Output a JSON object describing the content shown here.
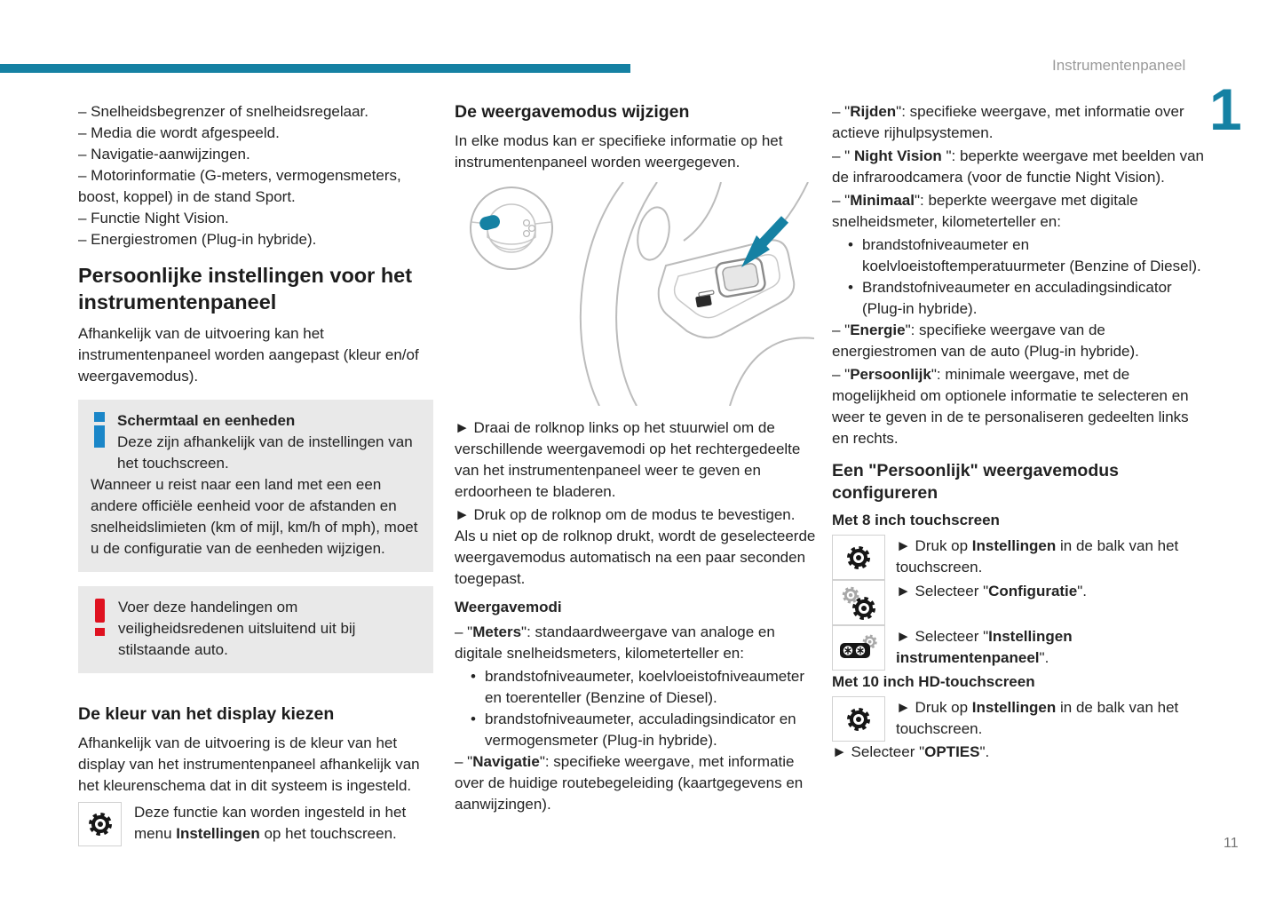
{
  "header": {
    "title": "Instrumentenpaneel",
    "chapter_number": "1",
    "page_number": "11"
  },
  "colors": {
    "teal": "#1581a3",
    "info_blue": "#1a86c8",
    "warning_red": "#df1220",
    "box_gray": "#e9e9e9"
  },
  "col1": {
    "intro_items": [
      "–  Snelheidsbegrenzer of snelheidsregelaar.",
      "–  Media die wordt afgespeeld.",
      "–  Navigatie-aanwijzingen.",
      "–  Motorinformatie (G-meters, vermogensmeters, boost, koppel) in de stand Sport.",
      "–  Functie Night Vision.",
      "–  Energiestromen (Plug-in hybride)."
    ],
    "heading": "Persoonlijke instellingen voor het instrumentenpaneel",
    "intro_paragraph": "Afhankelijk van de uitvoering kan het instrumentenpaneel worden aangepast (kleur en/of weergavemodus).",
    "info_box": {
      "title": "Schermtaal en eenheden",
      "para1": "Deze zijn afhankelijk van de instellingen van het touchscreen.",
      "para2": "Wanneer u reist naar een land met een een andere officiële eenheid voor de afstanden en snelheidslimieten (km of mijl, km/h of mph), moet u de configuratie van de eenheden wijzigen."
    },
    "warning_box": {
      "text": "Voer deze handelingen om veiligheidsredenen uitsluitend uit bij stilstaande auto."
    },
    "color_heading": "De kleur van het display kiezen",
    "color_paragraph": "Afhankelijk van de uitvoering is de kleur van het display van het instrumentenpaneel afhankelijk van het kleurenschema dat in dit systeem is ingesteld.",
    "gear_note": [
      {
        "t": "Deze functie kan worden ingesteld in het menu "
      },
      {
        "t": "Instellingen",
        "b": true
      },
      {
        "t": " op het touchscreen."
      }
    ]
  },
  "col2": {
    "heading": "De weergavemodus wijzigen",
    "intro_paragraph": "In elke modus kan er specifieke informatie op het instrumentenpaneel worden weergegeven.",
    "step1": "►  Draai de rolknop links op het stuurwiel om de verschillende weergavemodi op het rechtergedeelte van het instrumentenpaneel weer te geven en erdoorheen te bladeren.",
    "step2": "►  Druk op de rolknop om de modus te bevestigen. Als u niet op de rolknop drukt, wordt de geselecteerde weergavemodus automatisch na een paar seconden toegepast.",
    "modes_heading": "Weergavemodi",
    "mode_meters": [
      {
        "t": "–  \""
      },
      {
        "t": "Meters",
        "b": true
      },
      {
        "t": "\": standaardweergave van analoge en digitale snelheidsmeters, kilometerteller en:"
      }
    ],
    "meters_bullets": [
      "brandstofniveaumeter, koelvloeistofniveaumeter en toerenteller (Benzine of Diesel).",
      "brandstofniveaumeter, acculadingsindicator en vermogensmeter (Plug-in hybride)."
    ],
    "mode_navigatie": [
      {
        "t": "–  \""
      },
      {
        "t": "Navigatie",
        "b": true
      },
      {
        "t": "\": specifieke weergave, met informatie over de huidige routebegeleiding (kaartgegevens en aanwijzingen)."
      }
    ]
  },
  "col3": {
    "mode_rijden": [
      {
        "t": "–  \""
      },
      {
        "t": "Rijden",
        "b": true
      },
      {
        "t": "\": specifieke weergave, met informatie over actieve rijhulpsystemen."
      }
    ],
    "mode_nightvision": [
      {
        "t": "–  \" "
      },
      {
        "t": "Night Vision",
        "b": true
      },
      {
        "t": " \": beperkte weergave met beelden van de infraroodcamera (voor de functie Night Vision)."
      }
    ],
    "mode_minimaal": [
      {
        "t": "–  \""
      },
      {
        "t": "Minimaal",
        "b": true
      },
      {
        "t": "\": beperkte weergave met digitale snelheidsmeter, kilometerteller en:"
      }
    ],
    "minimaal_bullets": [
      "brandstofniveaumeter en koelvloeistoftemperatuurmeter (Benzine of Diesel).",
      "Brandstofniveaumeter en acculadingsindicator (Plug-in hybride)."
    ],
    "mode_energie": [
      {
        "t": "–  \""
      },
      {
        "t": "Energie",
        "b": true
      },
      {
        "t": "\": specifieke weergave van de energiestromen van de auto (Plug-in hybride)."
      }
    ],
    "mode_persoonlijk": [
      {
        "t": "–  \""
      },
      {
        "t": "Persoonlijk",
        "b": true
      },
      {
        "t": "\": minimale weergave, met de mogelijkheid om optionele informatie te selecteren en weer te geven in de te personaliseren gedeelten links en rechts."
      }
    ],
    "config_heading": "Een \"Persoonlijk\" weergavemodus configureren",
    "sub8": "Met 8 inch touchscreen",
    "row8_1": [
      {
        "t": "►  Druk op "
      },
      {
        "t": "Instellingen",
        "b": true
      },
      {
        "t": " in de balk van het touchscreen."
      }
    ],
    "row8_2": [
      {
        "t": "►  Selecteer \""
      },
      {
        "t": "Configuratie",
        "b": true
      },
      {
        "t": "\"."
      }
    ],
    "row8_3": [
      {
        "t": "►  Selecteer \""
      },
      {
        "t": "Instellingen instrumentenpaneel",
        "b": true
      },
      {
        "t": "\"."
      }
    ],
    "sub10": "Met 10 inch HD-touchscreen",
    "row10_1": [
      {
        "t": "►  Druk op "
      },
      {
        "t": "Instellingen",
        "b": true
      },
      {
        "t": " in de balk van het touchscreen."
      }
    ],
    "opties_step": [
      {
        "t": "►  Selecteer \""
      },
      {
        "t": "OPTIES",
        "b": true
      },
      {
        "t": "\"."
      }
    ]
  },
  "glyphs": {
    "bullet": "•"
  }
}
